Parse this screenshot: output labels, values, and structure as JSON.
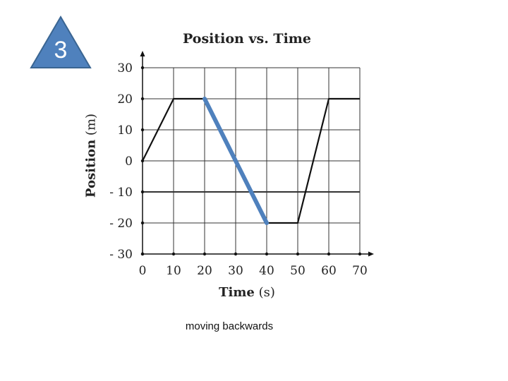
{
  "slide": {
    "number": "3",
    "caption": "moving backwards"
  },
  "colors": {
    "badge_fill": "#4f81bd",
    "badge_stroke": "#3a6592",
    "highlight": "#4f81bd",
    "line": "#111111",
    "grid": "#333333"
  },
  "chart_data": {
    "type": "line",
    "title": "Position vs. Time",
    "xlabel_main": "Time",
    "xlabel_unit": "(s)",
    "ylabel_main": "Position",
    "ylabel_unit": "(m)",
    "xlim": [
      0,
      70
    ],
    "ylim": [
      -30,
      30
    ],
    "xticks": [
      0,
      10,
      20,
      30,
      40,
      50,
      60,
      70
    ],
    "yticks": [
      30,
      20,
      10,
      0,
      -10,
      -20,
      -30
    ],
    "ytick_labels": [
      "30",
      "20",
      "10",
      "0",
      "- 10",
      "- 20",
      "- 30"
    ],
    "grid": true,
    "series": [
      {
        "x": [
          0,
          10,
          20,
          40,
          50,
          60,
          70
        ],
        "y": [
          0,
          20,
          20,
          -20,
          -20,
          20,
          20
        ]
      }
    ],
    "highlight_segment": {
      "x": [
        20,
        40
      ],
      "y": [
        20,
        -20
      ]
    }
  }
}
